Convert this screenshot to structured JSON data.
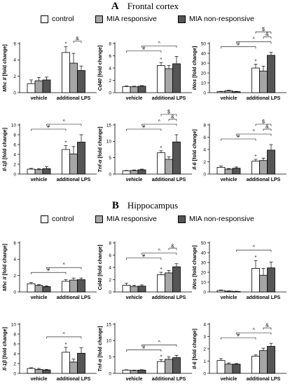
{
  "figure": {
    "sections": [
      {
        "letter": "A",
        "name": "Frontal cortex"
      },
      {
        "letter": "B",
        "name": "Hippocampus"
      }
    ],
    "legend": [
      {
        "label": "control",
        "color": "#ffffff"
      },
      {
        "label": "MIA responsive",
        "color": "#a6a6a6"
      },
      {
        "label": "MIA non-responsive",
        "color": "#555555"
      }
    ]
  },
  "chart_data": [
    {
      "type": "bar",
      "section": "A",
      "ylabel": "Mhc II [fold change]",
      "categories": [
        "vehicle",
        "additional LPS"
      ],
      "ylim": [
        0,
        6
      ],
      "yticks": [
        0,
        2,
        4,
        6
      ],
      "series": [
        {
          "name": "control",
          "values": [
            1.1,
            4.9
          ],
          "errors": [
            0.45,
            0.7
          ]
        },
        {
          "name": "MIA responsive",
          "values": [
            1.45,
            3.6
          ],
          "errors": [
            0.4,
            1.2
          ]
        },
        {
          "name": "MIA non-responsive",
          "values": [
            1.55,
            2.7
          ],
          "errors": [
            0.35,
            0.55
          ]
        }
      ],
      "markers": [
        {
          "series": 0,
          "group": 1,
          "symbol": "*"
        }
      ],
      "brackets": [
        {
          "from": [
            1,
            1
          ],
          "to": [
            1,
            2
          ],
          "label": "&",
          "level": 0
        }
      ]
    },
    {
      "type": "bar",
      "section": "A",
      "ylabel": "Cd40 [fold change]",
      "categories": [
        "vehicle",
        "additional LPS"
      ],
      "ylim": [
        0,
        8
      ],
      "yticks": [
        0,
        2,
        4,
        6,
        8
      ],
      "series": [
        {
          "name": "control",
          "values": [
            1.0,
            4.4
          ],
          "errors": [
            0.1,
            0.5
          ]
        },
        {
          "name": "MIA responsive",
          "values": [
            0.95,
            3.9
          ],
          "errors": [
            0.1,
            0.5
          ]
        },
        {
          "name": "MIA non-responsive",
          "values": [
            1.05,
            4.7
          ],
          "errors": [
            0.1,
            1.2
          ]
        }
      ],
      "markers": [
        {
          "series": 0,
          "group": 1,
          "symbol": "*"
        }
      ],
      "brackets": [
        {
          "from": [
            0,
            0
          ],
          "to": [
            1,
            0
          ],
          "label": "#",
          "level": 0
        },
        {
          "from": [
            0,
            2
          ],
          "to": [
            1,
            2
          ],
          "label": "^",
          "level": 1
        }
      ]
    },
    {
      "type": "bar",
      "section": "A",
      "ylabel": "iNos [fold change]",
      "categories": [
        "vehicle",
        "additional LPS"
      ],
      "ylim": [
        0,
        50
      ],
      "yticks": [
        0,
        10,
        20,
        30,
        40,
        50
      ],
      "series": [
        {
          "name": "control",
          "values": [
            1,
            25
          ],
          "errors": [
            0.3,
            4
          ]
        },
        {
          "name": "MIA responsive",
          "values": [
            2,
            22
          ],
          "errors": [
            0.5,
            5
          ]
        },
        {
          "name": "MIA non-responsive",
          "values": [
            1,
            38
          ],
          "errors": [
            0.3,
            3
          ]
        }
      ],
      "markers": [
        {
          "series": 0,
          "group": 1,
          "symbol": "*"
        }
      ],
      "brackets": [
        {
          "from": [
            0,
            0
          ],
          "to": [
            1,
            0
          ],
          "label": "#",
          "level": 0
        },
        {
          "from": [
            0,
            2
          ],
          "to": [
            1,
            2
          ],
          "label": "^",
          "level": 1
        },
        {
          "from": [
            1,
            1
          ],
          "to": [
            1,
            2
          ],
          "label": "&",
          "level": 2
        },
        {
          "from": [
            1,
            0
          ],
          "to": [
            1,
            2
          ],
          "label": "$",
          "level": 3
        }
      ]
    },
    {
      "type": "bar",
      "section": "A",
      "ylabel": "Il-1β [fold change]",
      "categories": [
        "vehicle",
        "additional LPS"
      ],
      "ylim": [
        0,
        10
      ],
      "yticks": [
        0,
        2,
        4,
        6,
        8,
        10
      ],
      "series": [
        {
          "name": "control",
          "values": [
            1.0,
            5.0
          ],
          "errors": [
            0.15,
            0.8
          ]
        },
        {
          "name": "MIA responsive",
          "values": [
            0.9,
            4.1
          ],
          "errors": [
            0.2,
            1.5
          ]
        },
        {
          "name": "MIA non-responsive",
          "values": [
            1.1,
            6.5
          ],
          "errors": [
            0.4,
            1.5
          ]
        }
      ],
      "markers": [
        {
          "series": 0,
          "group": 1,
          "symbol": "*"
        }
      ],
      "brackets": [
        {
          "from": [
            0,
            0
          ],
          "to": [
            1,
            0
          ],
          "label": "#",
          "level": 0
        },
        {
          "from": [
            0,
            2
          ],
          "to": [
            1,
            2
          ],
          "label": "^",
          "level": 1
        }
      ]
    },
    {
      "type": "bar",
      "section": "A",
      "ylabel": "Tnf-α [fold change]",
      "categories": [
        "vehicle",
        "additional LPS"
      ],
      "ylim": [
        0,
        15
      ],
      "yticks": [
        0,
        5,
        10,
        15
      ],
      "series": [
        {
          "name": "control",
          "values": [
            1,
            6.5
          ],
          "errors": [
            0.1,
            0.6
          ]
        },
        {
          "name": "MIA responsive",
          "values": [
            1.1,
            4.5
          ],
          "errors": [
            0.15,
            0.8
          ]
        },
        {
          "name": "MIA non-responsive",
          "values": [
            1.3,
            9.8
          ],
          "errors": [
            0.2,
            2.2
          ]
        }
      ],
      "markers": [
        {
          "series": 0,
          "group": 1,
          "symbol": "*"
        }
      ],
      "brackets": [
        {
          "from": [
            0,
            0
          ],
          "to": [
            1,
            0
          ],
          "label": "#",
          "level": 0
        },
        {
          "from": [
            0,
            2
          ],
          "to": [
            1,
            2
          ],
          "label": "^",
          "level": 1
        },
        {
          "from": [
            1,
            1
          ],
          "to": [
            1,
            2
          ],
          "label": "&",
          "level": 2
        },
        {
          "from": [
            1,
            0
          ],
          "to": [
            1,
            2
          ],
          "label": "$",
          "level": 3
        }
      ]
    },
    {
      "type": "bar",
      "section": "A",
      "ylabel": "Il-6 [fold change]",
      "categories": [
        "vehicle",
        "additional LPS"
      ],
      "ylim": [
        0,
        8
      ],
      "yticks": [
        0,
        2,
        4,
        6,
        8
      ],
      "series": [
        {
          "name": "control",
          "values": [
            1.1,
            2.1
          ],
          "errors": [
            0.2,
            0.3
          ]
        },
        {
          "name": "MIA responsive",
          "values": [
            0.8,
            2.2
          ],
          "errors": [
            0.1,
            0.4
          ]
        },
        {
          "name": "MIA non-responsive",
          "values": [
            0.95,
            3.9
          ],
          "errors": [
            0.2,
            0.9
          ]
        }
      ],
      "markers": [
        {
          "series": 0,
          "group": 1,
          "symbol": "*"
        }
      ],
      "brackets": [
        {
          "from": [
            0,
            0
          ],
          "to": [
            1,
            0
          ],
          "label": "#",
          "level": 0
        },
        {
          "from": [
            0,
            2
          ],
          "to": [
            1,
            2
          ],
          "label": "^",
          "level": 1
        },
        {
          "from": [
            1,
            1
          ],
          "to": [
            1,
            2
          ],
          "label": "&",
          "level": 2
        },
        {
          "from": [
            1,
            0
          ],
          "to": [
            1,
            2
          ],
          "label": "$",
          "level": 3
        }
      ]
    },
    {
      "type": "bar",
      "section": "B",
      "ylabel": "Mhc II [fold change]",
      "categories": [
        "vehicle",
        "additional LPS"
      ],
      "ylim": [
        0,
        6
      ],
      "yticks": [
        0,
        2,
        4,
        6
      ],
      "series": [
        {
          "name": "control",
          "values": [
            1.0,
            1.3
          ],
          "errors": [
            0.15,
            0.2
          ]
        },
        {
          "name": "MIA responsive",
          "values": [
            0.8,
            1.45
          ],
          "errors": [
            0.1,
            0.25
          ]
        },
        {
          "name": "MIA non-responsive",
          "values": [
            0.65,
            1.5
          ],
          "errors": [
            0.1,
            0.2
          ]
        }
      ],
      "markers": [],
      "brackets": [
        {
          "from": [
            0,
            0
          ],
          "to": [
            1,
            0
          ],
          "label": "#",
          "level": 0
        },
        {
          "from": [
            0,
            2
          ],
          "to": [
            1,
            2
          ],
          "label": "^",
          "level": 1
        }
      ]
    },
    {
      "type": "bar",
      "section": "B",
      "ylabel": "Cd40 [fold change]",
      "categories": [
        "vehicle",
        "additional LPS"
      ],
      "ylim": [
        0,
        8
      ],
      "yticks": [
        0,
        2,
        4,
        6,
        8
      ],
      "series": [
        {
          "name": "control",
          "values": [
            1.1,
            2.8
          ],
          "errors": [
            0.3,
            0.4
          ]
        },
        {
          "name": "MIA responsive",
          "values": [
            0.9,
            3.1
          ],
          "errors": [
            0.2,
            0.4
          ]
        },
        {
          "name": "MIA non-responsive",
          "values": [
            0.95,
            4.1
          ],
          "errors": [
            0.2,
            0.5
          ]
        }
      ],
      "markers": [
        {
          "series": 0,
          "group": 1,
          "symbol": "*"
        }
      ],
      "brackets": [
        {
          "from": [
            0,
            0
          ],
          "to": [
            1,
            0
          ],
          "label": "#",
          "level": 0
        },
        {
          "from": [
            0,
            2
          ],
          "to": [
            1,
            2
          ],
          "label": "^",
          "level": 1
        },
        {
          "from": [
            1,
            1
          ],
          "to": [
            1,
            2
          ],
          "label": "&",
          "level": 2
        }
      ]
    },
    {
      "type": "bar",
      "section": "B",
      "ylabel": "iNos [fold change]",
      "categories": [
        "vehicle",
        "additional LPS"
      ],
      "ylim": [
        0,
        50
      ],
      "yticks": [
        0,
        10,
        20,
        30,
        40,
        50
      ],
      "series": [
        {
          "name": "control",
          "values": [
            1.5,
            24
          ],
          "errors": [
            0.5,
            8
          ]
        },
        {
          "name": "MIA responsive",
          "values": [
            0.8,
            17
          ],
          "errors": [
            0.3,
            7
          ]
        },
        {
          "name": "MIA non-responsive",
          "values": [
            0.5,
            24.5
          ],
          "errors": [
            0.2,
            6
          ]
        }
      ],
      "markers": [
        {
          "series": 0,
          "group": 1,
          "symbol": "*"
        }
      ],
      "brackets": [
        {
          "from": [
            0,
            2
          ],
          "to": [
            1,
            2
          ],
          "label": "^",
          "level": 1
        }
      ]
    },
    {
      "type": "bar",
      "section": "B",
      "ylabel": "Il-1β [fold change]",
      "categories": [
        "vehicle",
        "additional LPS"
      ],
      "ylim": [
        0,
        10
      ],
      "yticks": [
        0,
        2,
        4,
        6,
        8,
        10
      ],
      "series": [
        {
          "name": "control",
          "values": [
            1.0,
            4.3
          ],
          "errors": [
            0.15,
            1.0
          ]
        },
        {
          "name": "MIA responsive",
          "values": [
            0.8,
            2.3
          ],
          "errors": [
            0.2,
            0.6
          ]
        },
        {
          "name": "MIA non-responsive",
          "values": [
            0.7,
            4.1
          ],
          "errors": [
            0.1,
            1.1
          ]
        }
      ],
      "markers": [
        {
          "series": 0,
          "group": 1,
          "symbol": "*"
        }
      ],
      "brackets": [
        {
          "from": [
            0,
            2
          ],
          "to": [
            1,
            2
          ],
          "label": "^",
          "level": 1
        }
      ]
    },
    {
      "type": "bar",
      "section": "B",
      "ylabel": "Tnf-α [fold change]",
      "categories": [
        "vehicle",
        "additional LPS"
      ],
      "ylim": [
        0,
        15
      ],
      "yticks": [
        0,
        5,
        10,
        15
      ],
      "series": [
        {
          "name": "control",
          "values": [
            1,
            3.6
          ],
          "errors": [
            0.1,
            0.6
          ]
        },
        {
          "name": "MIA responsive",
          "values": [
            0.9,
            4.3
          ],
          "errors": [
            0.1,
            0.8
          ]
        },
        {
          "name": "MIA non-responsive",
          "values": [
            1.0,
            4.8
          ],
          "errors": [
            0.1,
            0.7
          ]
        }
      ],
      "markers": [
        {
          "series": 0,
          "group": 1,
          "symbol": "*"
        }
      ],
      "brackets": [
        {
          "from": [
            0,
            0
          ],
          "to": [
            1,
            0
          ],
          "label": "#",
          "level": 0
        },
        {
          "from": [
            0,
            2
          ],
          "to": [
            1,
            2
          ],
          "label": "^",
          "level": 1
        }
      ]
    },
    {
      "type": "bar",
      "section": "B",
      "ylabel": "Il-6 [fold change]",
      "categories": [
        "vehicle",
        "additional LPS"
      ],
      "ylim": [
        0,
        4
      ],
      "yticks": [
        0,
        1,
        2,
        3,
        4
      ],
      "series": [
        {
          "name": "control",
          "values": [
            1.05,
            1.4
          ],
          "errors": [
            0.15,
            0.1
          ]
        },
        {
          "name": "MIA responsive",
          "values": [
            0.75,
            1.85
          ],
          "errors": [
            0.1,
            0.2
          ]
        },
        {
          "name": "MIA non-responsive",
          "values": [
            0.75,
            2.2
          ],
          "errors": [
            0.05,
            0.25
          ]
        }
      ],
      "markers": [],
      "brackets": [
        {
          "from": [
            0,
            0
          ],
          "to": [
            1,
            0
          ],
          "label": "#",
          "level": 0
        },
        {
          "from": [
            0,
            2
          ],
          "to": [
            1,
            2
          ],
          "label": "^",
          "level": 1
        },
        {
          "from": [
            1,
            1
          ],
          "to": [
            1,
            2
          ],
          "label": "&",
          "level": 2
        }
      ]
    }
  ]
}
